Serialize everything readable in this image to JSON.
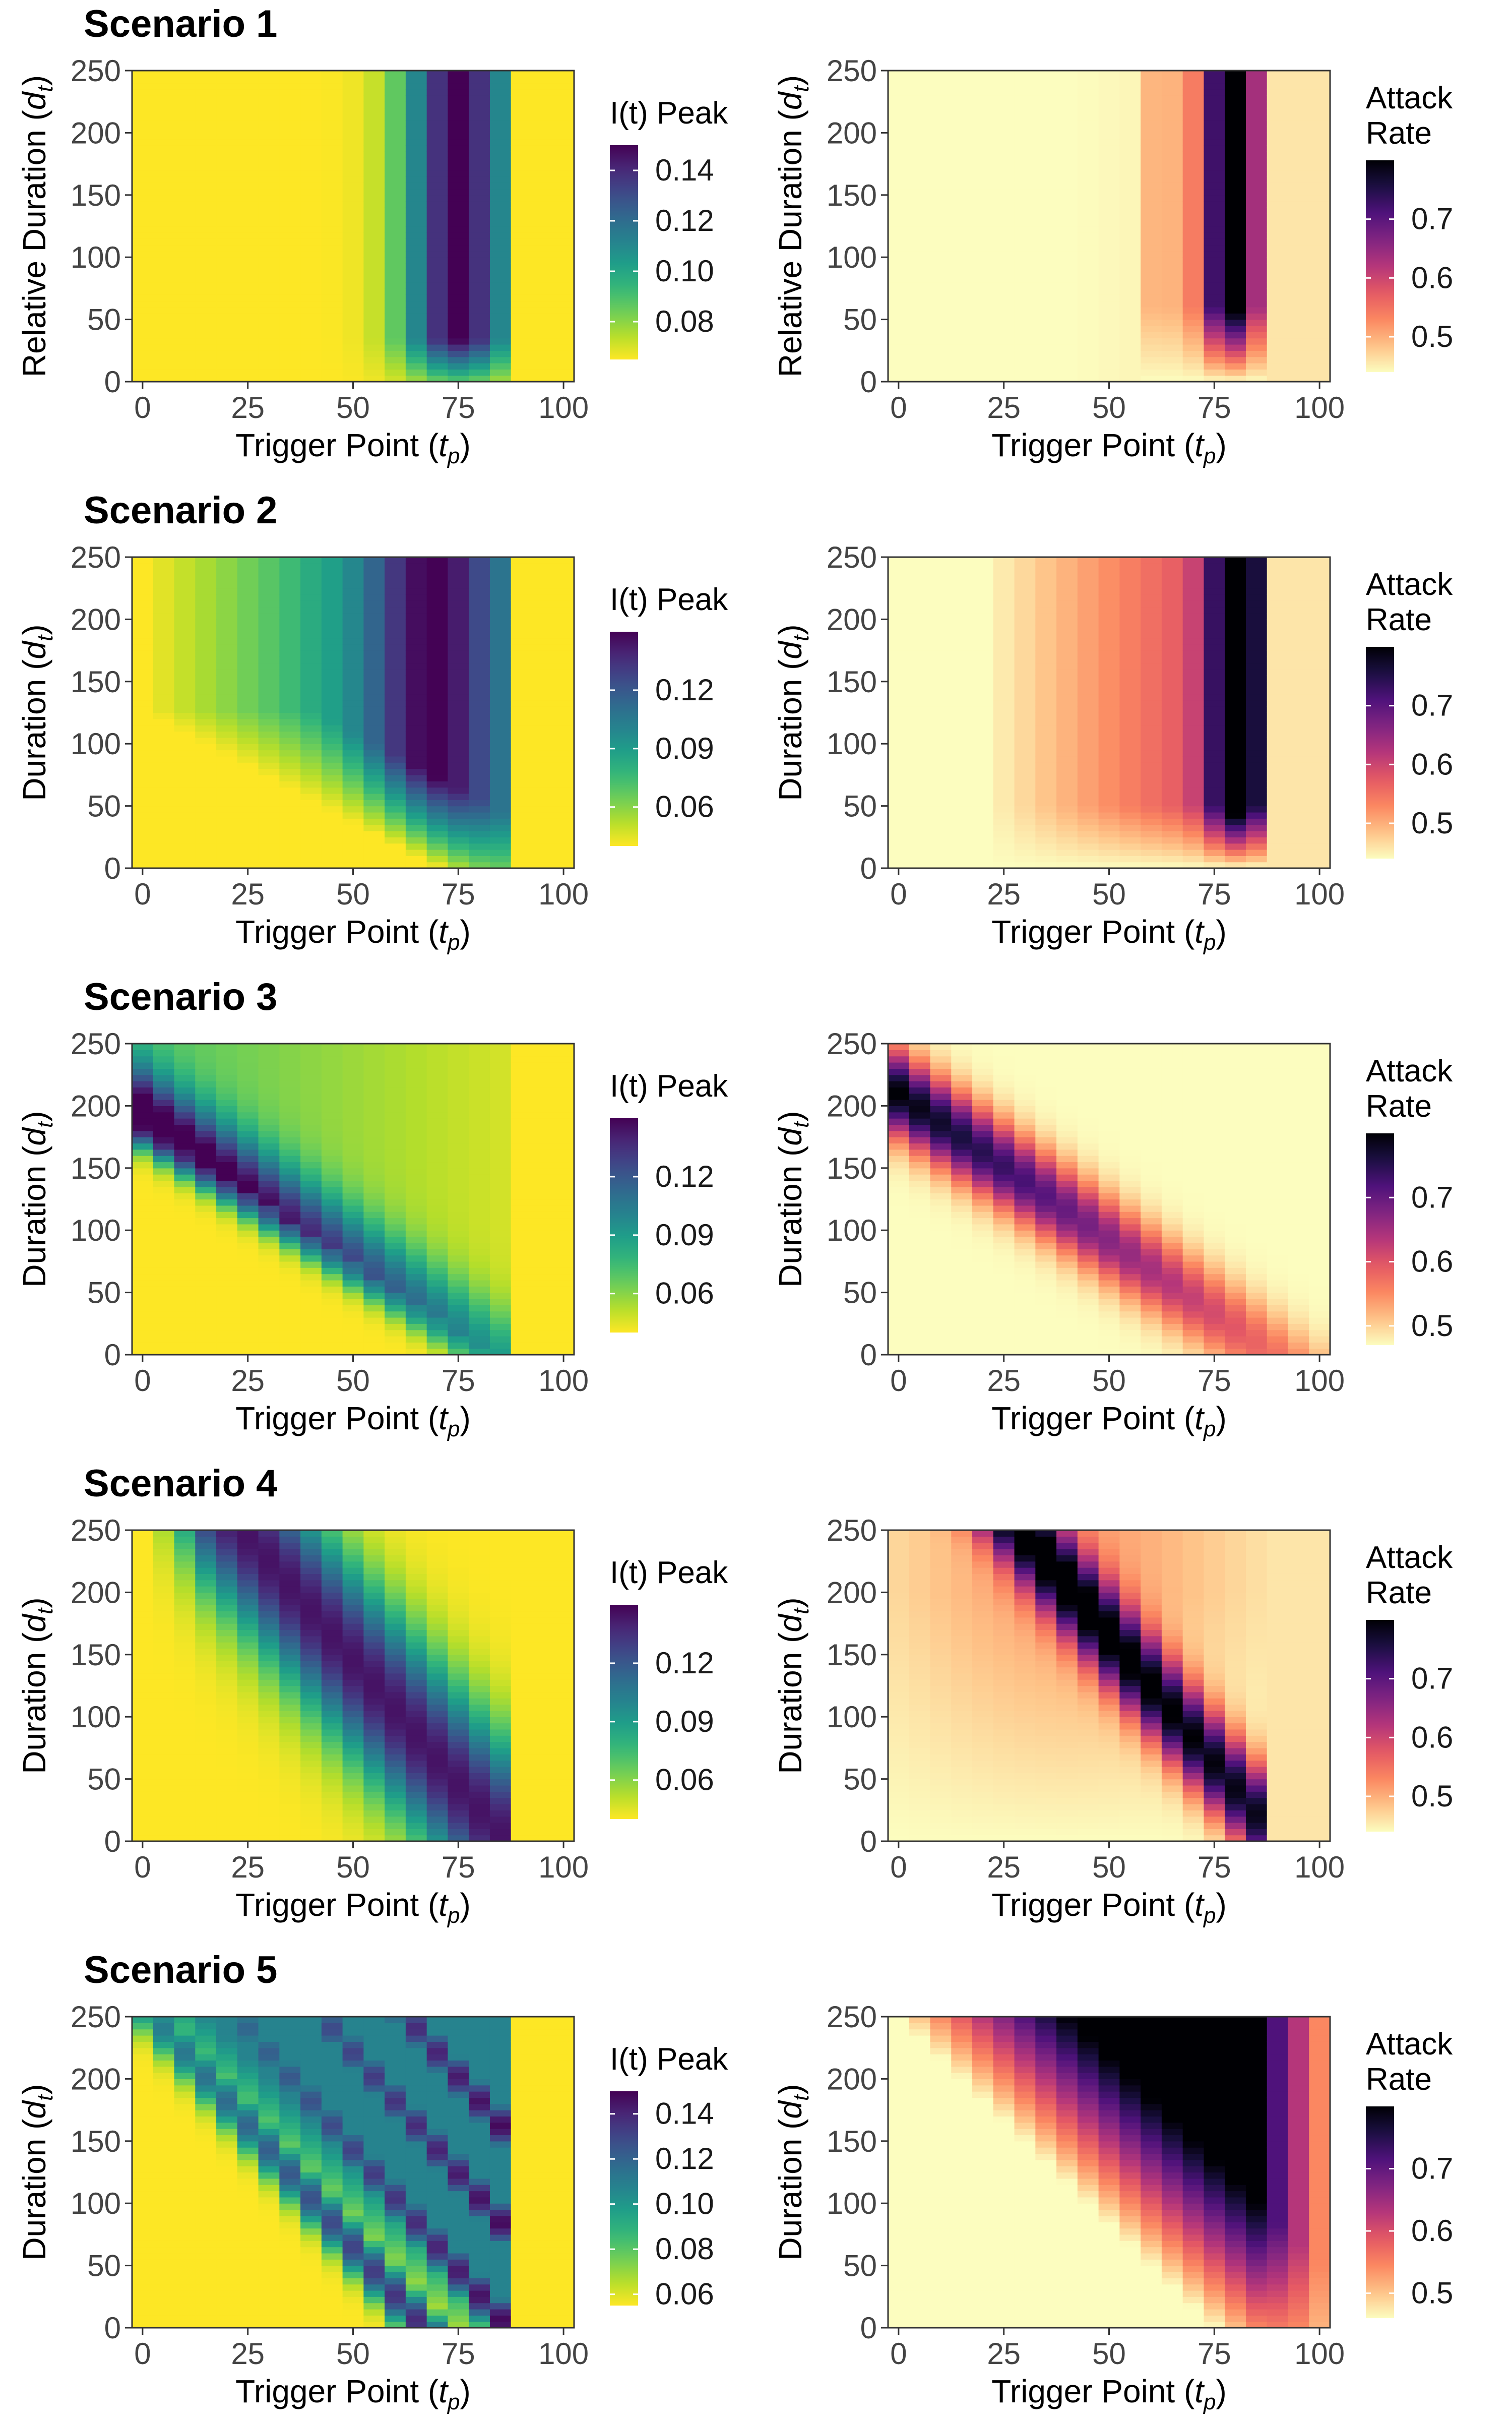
{
  "colors": {
    "viridis": [
      "#440154",
      "#482878",
      "#3e4a89",
      "#31688e",
      "#26828e",
      "#1f9e89",
      "#35b779",
      "#6ece58",
      "#b5de2b",
      "#fde725"
    ],
    "magma": [
      "#000004",
      "#1c1044",
      "#4f127b",
      "#812581",
      "#b5367a",
      "#e55964",
      "#fb8761",
      "#fec287",
      "#fcfdbf"
    ]
  },
  "chart_data": [
    {
      "scenario_title": "Scenario 1",
      "type": "heatmap",
      "xlabel": "Trigger Point",
      "x_sub": "p",
      "ylabel": "Relative Duration",
      "y_sub": "t",
      "x_ticks": [
        0,
        25,
        50,
        75,
        100
      ],
      "y_ticks": [
        0,
        50,
        100,
        150,
        200,
        250
      ],
      "xlim": [
        0,
        100
      ],
      "ylim": [
        0,
        250
      ],
      "metric": "I(t) Peak",
      "legend_title": [
        "I(t) Peak"
      ],
      "legend_ticks": [
        0.14,
        0.12,
        0.1,
        0.08
      ],
      "legend_labels": [
        "0.14",
        "0.12",
        "0.10",
        "0.08"
      ],
      "range": [
        0.065,
        0.15
      ],
      "palette": "viridis",
      "reverse": true,
      "model": 1
    },
    {
      "scenario_title": "",
      "type": "heatmap",
      "xlabel": "Trigger Point",
      "x_sub": "p",
      "ylabel": "Relative Duration",
      "y_sub": "t",
      "x_ticks": [
        0,
        25,
        50,
        75,
        100
      ],
      "y_ticks": [
        0,
        50,
        100,
        150,
        200,
        250
      ],
      "xlim": [
        0,
        100
      ],
      "ylim": [
        0,
        250
      ],
      "metric": "Attack Rate",
      "legend_title": [
        "Attack",
        "Rate"
      ],
      "legend_ticks": [
        0.7,
        0.6,
        0.5
      ],
      "legend_labels": [
        "0.7",
        "0.6",
        "0.5"
      ],
      "range": [
        0.44,
        0.8
      ],
      "palette": "magma",
      "reverse": true,
      "model": 1
    },
    {
      "scenario_title": "Scenario 2",
      "type": "heatmap",
      "xlabel": "Trigger Point",
      "x_sub": "p",
      "ylabel": "Duration",
      "y_sub": "t",
      "x_ticks": [
        0,
        25,
        50,
        75,
        100
      ],
      "y_ticks": [
        0,
        50,
        100,
        150,
        200,
        250
      ],
      "xlim": [
        0,
        100
      ],
      "ylim": [
        0,
        250
      ],
      "metric": "I(t) Peak",
      "legend_title": [
        "I(t) Peak"
      ],
      "legend_ticks": [
        0.12,
        0.09,
        0.06
      ],
      "legend_labels": [
        "0.12",
        "0.09",
        "0.06"
      ],
      "range": [
        0.04,
        0.15
      ],
      "palette": "viridis",
      "reverse": true,
      "model": 2
    },
    {
      "scenario_title": "",
      "type": "heatmap",
      "xlabel": "Trigger Point",
      "x_sub": "p",
      "ylabel": "Duration",
      "y_sub": "t",
      "x_ticks": [
        0,
        25,
        50,
        75,
        100
      ],
      "y_ticks": [
        0,
        50,
        100,
        150,
        200,
        250
      ],
      "xlim": [
        0,
        100
      ],
      "ylim": [
        0,
        250
      ],
      "metric": "Attack Rate",
      "legend_title": [
        "Attack",
        "Rate"
      ],
      "legend_ticks": [
        0.7,
        0.6,
        0.5
      ],
      "legend_labels": [
        "0.7",
        "0.6",
        "0.5"
      ],
      "range": [
        0.44,
        0.8
      ],
      "palette": "magma",
      "reverse": true,
      "model": 2
    },
    {
      "scenario_title": "Scenario 3",
      "type": "heatmap",
      "xlabel": "Trigger Point",
      "x_sub": "p",
      "ylabel": "Duration",
      "y_sub": "t",
      "x_ticks": [
        0,
        25,
        50,
        75,
        100
      ],
      "y_ticks": [
        0,
        50,
        100,
        150,
        200,
        250
      ],
      "xlim": [
        0,
        100
      ],
      "ylim": [
        0,
        250
      ],
      "metric": "I(t) Peak",
      "legend_title": [
        "I(t) Peak"
      ],
      "legend_ticks": [
        0.12,
        0.09,
        0.06
      ],
      "legend_labels": [
        "0.12",
        "0.09",
        "0.06"
      ],
      "range": [
        0.04,
        0.15
      ],
      "palette": "viridis",
      "reverse": true,
      "model": 3
    },
    {
      "scenario_title": "",
      "type": "heatmap",
      "xlabel": "Trigger Point",
      "x_sub": "p",
      "ylabel": "Duration",
      "y_sub": "t",
      "x_ticks": [
        0,
        25,
        50,
        75,
        100
      ],
      "y_ticks": [
        0,
        50,
        100,
        150,
        200,
        250
      ],
      "xlim": [
        0,
        100
      ],
      "ylim": [
        0,
        250
      ],
      "metric": "Attack Rate",
      "legend_title": [
        "Attack",
        "Rate"
      ],
      "legend_ticks": [
        0.7,
        0.6,
        0.5
      ],
      "legend_labels": [
        "0.7",
        "0.6",
        "0.5"
      ],
      "range": [
        0.47,
        0.8
      ],
      "palette": "magma",
      "reverse": true,
      "model": 3
    },
    {
      "scenario_title": "Scenario 4",
      "type": "heatmap",
      "xlabel": "Trigger Point",
      "x_sub": "p",
      "ylabel": "Duration",
      "y_sub": "t",
      "x_ticks": [
        0,
        25,
        50,
        75,
        100
      ],
      "y_ticks": [
        0,
        50,
        100,
        150,
        200,
        250
      ],
      "xlim": [
        0,
        100
      ],
      "ylim": [
        0,
        250
      ],
      "metric": "I(t) Peak",
      "legend_title": [
        "I(t) Peak"
      ],
      "legend_ticks": [
        0.12,
        0.09,
        0.06
      ],
      "legend_labels": [
        "0.12",
        "0.09",
        "0.06"
      ],
      "range": [
        0.04,
        0.15
      ],
      "palette": "viridis",
      "reverse": true,
      "model": 4
    },
    {
      "scenario_title": "",
      "type": "heatmap",
      "xlabel": "Trigger Point",
      "x_sub": "p",
      "ylabel": "Duration",
      "y_sub": "t",
      "x_ticks": [
        0,
        25,
        50,
        75,
        100
      ],
      "y_ticks": [
        0,
        50,
        100,
        150,
        200,
        250
      ],
      "xlim": [
        0,
        100
      ],
      "ylim": [
        0,
        250
      ],
      "metric": "Attack Rate",
      "legend_title": [
        "Attack",
        "Rate"
      ],
      "legend_ticks": [
        0.7,
        0.6,
        0.5
      ],
      "legend_labels": [
        "0.7",
        "0.6",
        "0.5"
      ],
      "range": [
        0.44,
        0.8
      ],
      "palette": "magma",
      "reverse": true,
      "model": 4
    },
    {
      "scenario_title": "Scenario 5",
      "type": "heatmap",
      "xlabel": "Trigger Point",
      "x_sub": "p",
      "ylabel": "Duration",
      "y_sub": "t",
      "x_ticks": [
        0,
        25,
        50,
        75,
        100
      ],
      "y_ticks": [
        0,
        50,
        100,
        150,
        200,
        250
      ],
      "xlim": [
        0,
        100
      ],
      "ylim": [
        0,
        250
      ],
      "metric": "I(t) Peak",
      "legend_title": [
        "I(t) Peak"
      ],
      "legend_ticks": [
        0.14,
        0.12,
        0.1,
        0.08,
        0.06
      ],
      "legend_labels": [
        "0.14",
        "0.12",
        "0.10",
        "0.08",
        "0.06"
      ],
      "range": [
        0.055,
        0.15
      ],
      "palette": "viridis",
      "reverse": true,
      "model": 5
    },
    {
      "scenario_title": "",
      "type": "heatmap",
      "xlabel": "Trigger Point",
      "x_sub": "p",
      "ylabel": "Duration",
      "y_sub": "t",
      "x_ticks": [
        0,
        25,
        50,
        75,
        100
      ],
      "y_ticks": [
        0,
        50,
        100,
        150,
        200,
        250
      ],
      "xlim": [
        0,
        100
      ],
      "ylim": [
        0,
        250
      ],
      "metric": "Attack Rate",
      "legend_title": [
        "Attack",
        "Rate"
      ],
      "legend_ticks": [
        0.7,
        0.6,
        0.5
      ],
      "legend_labels": [
        "0.7",
        "0.6",
        "0.5"
      ],
      "range": [
        0.46,
        0.8
      ],
      "palette": "magma",
      "reverse": true,
      "model": 5
    }
  ]
}
